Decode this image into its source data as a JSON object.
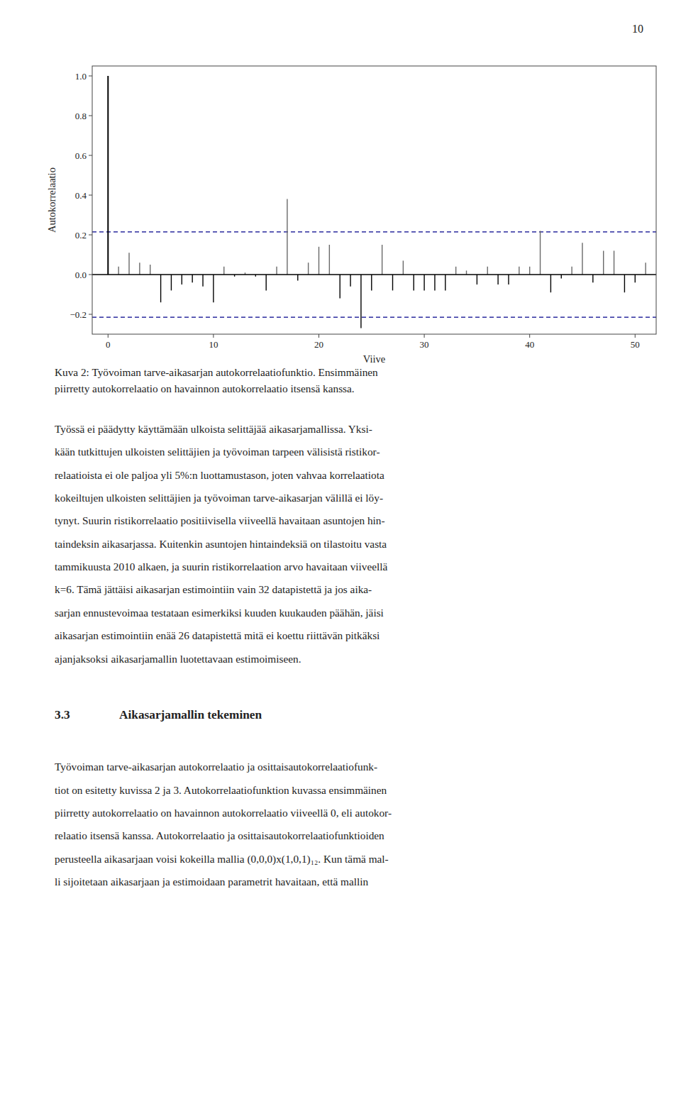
{
  "chart_data": {
    "type": "stem",
    "xlabel": "Viive",
    "ylabel": "Autokorrelaatio",
    "x": [
      0,
      1,
      2,
      3,
      4,
      5,
      6,
      7,
      8,
      9,
      10,
      11,
      12,
      13,
      14,
      15,
      16,
      17,
      18,
      19,
      20,
      21,
      22,
      23,
      24,
      25,
      26,
      27,
      28,
      29,
      30,
      31,
      32,
      33,
      34,
      35,
      36,
      37,
      38,
      39,
      40,
      41,
      42,
      43,
      44,
      45,
      46,
      47,
      48,
      49,
      50,
      51
    ],
    "values": [
      1.0,
      0.04,
      0.11,
      0.06,
      0.05,
      -0.14,
      -0.08,
      -0.05,
      -0.04,
      -0.06,
      -0.14,
      0.04,
      -0.01,
      0.01,
      -0.01,
      -0.08,
      0.04,
      0.38,
      -0.03,
      0.06,
      0.14,
      0.15,
      -0.12,
      -0.06,
      -0.27,
      -0.08,
      0.15,
      -0.08,
      0.07,
      -0.08,
      -0.08,
      -0.08,
      -0.08,
      0.04,
      0.02,
      -0.05,
      0.04,
      -0.05,
      -0.05,
      0.04,
      0.04,
      0.22,
      -0.09,
      -0.02,
      0.04,
      0.16,
      -0.04,
      0.12,
      0.12,
      -0.09,
      -0.04,
      0.06
    ],
    "colors": [
      "#000000",
      "#696969",
      "#696969",
      "#696969",
      "#696969",
      "#000000",
      "#000000",
      "#000000",
      "#000000",
      "#000000",
      "#000000",
      "#696969",
      "#000000",
      "#696969",
      "#000000",
      "#000000",
      "#696969",
      "#696969",
      "#000000",
      "#696969",
      "#696969",
      "#696969",
      "#000000",
      "#000000",
      "#000000",
      "#000000",
      "#696969",
      "#000000",
      "#696969",
      "#000000",
      "#000000",
      "#000000",
      "#000000",
      "#696969",
      "#696969",
      "#000000",
      "#696969",
      "#000000",
      "#000000",
      "#696969",
      "#696969",
      "#696969",
      "#000000",
      "#000000",
      "#696969",
      "#696969",
      "#000000",
      "#696969",
      "#696969",
      "#000000",
      "#000000",
      "#696969"
    ],
    "confidence_bounds": {
      "values": [
        0.215,
        -0.215
      ],
      "color": "#00008B"
    },
    "xlim": [
      -1.5,
      52
    ],
    "ylim": [
      -0.3,
      1.05
    ],
    "xticks": [
      0,
      10,
      20,
      30,
      40,
      50
    ],
    "yticks": [
      {
        "value": -0.2,
        "label": "−0.2"
      },
      {
        "value": 0.0,
        "label": "0.0"
      },
      0.2,
      0.4,
      0.6,
      0.8,
      {
        "value": 1.0,
        "label": "1.0"
      }
    ],
    "grid": false
  },
  "page": {
    "page_number": "10",
    "caption": [
      "Kuva 2: Työvoiman tarve-aikasarjan autokorrelaatiofunktio. Ensimmäinen",
      "piirretty autokorrelaatio on havainnon autokorrelaatio itsensä kanssa."
    ],
    "paragraph_1": [
      "Työssä ei päädytty käyttämään ulkoista selittäjää aikasarjamallissa. Yksi-",
      "kään tutkittujen ulkoisten selittäjien ja työvoiman tarpeen välisistä ristikor-",
      "relaatioista ei ole paljoa yli 5%:n luottamustason, joten vahvaa korrelaatiota",
      "kokeiltujen ulkoisten selittäjien ja työvoiman tarve-aikasarjan välillä ei löy-",
      "tynyt. Suurin ristikorrelaatio positiivisella viiveellä havaitaan asuntojen hin-",
      "taindeksin aikasarjassa. Kuitenkin asuntojen hintaindeksiä on tilastoitu vasta",
      "tammikuusta 2010 alkaen, ja suurin ristikorrelaation arvo havaitaan viiveellä",
      "k=6. Tämä jättäisi aikasarjan estimointiin vain 32 datapistettä ja jos aika-",
      "sarjan ennustevoimaa testataan esimerkiksi kuuden kuukauden päähän, jäisi",
      "aikasarjan estimointiin enää 26 datapistettä mitä ei koettu riittävän pitkäksi",
      "ajanjaksoksi aikasarjamallin luotettavaan estimoimiseen."
    ],
    "section_heading": {
      "number": "3.3",
      "title": "Aikasarjamallin tekeminen"
    },
    "paragraph_2": [
      "Työvoiman tarve-aikasarjan autokorrelaatio ja osittaisautokorrelaatiofunk-",
      "tiot on esitetty kuvissa 2 ja 3. Autokorrelaatiofunktion kuvassa ensimmäinen",
      "piirretty autokorrelaatio on havainnon autokorrelaatio viiveellä 0, eli autokor-",
      "relaatio itsensä kanssa. Autokorrelaatio ja osittaisautokorrelaatiofunktioiden",
      "perusteella aikasarjaan voisi kokeilla mallia (0,0,0)x(1,0,1)₁₂. Kun tämä mal-",
      "li sijoitetaan aikasarjaan ja estimoidaan parametrit havaitaan, että mallin"
    ]
  }
}
